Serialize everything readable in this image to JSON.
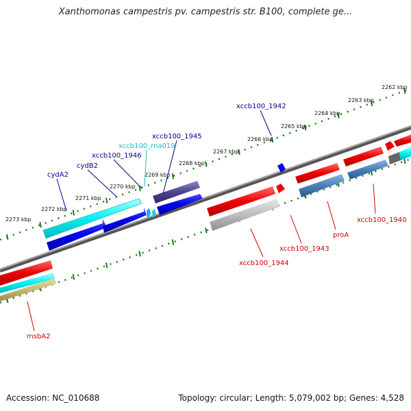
{
  "title": "Xanthomonas campestris pv. campestris str. B100, complete ge...",
  "footer": {
    "accession": "Accession: NC_010688",
    "summary": "Topology: circular; Length: 5,079,002 bp; Genes: 4,528"
  },
  "ticks": [
    "2262 kbp",
    "2263 kbp",
    "2264 kbp",
    "2265 kbp",
    "2266 kbp",
    "2267 kbp",
    "2268 kbp",
    "2269 kbp",
    "2270 kbp",
    "2271 kbp",
    "2272 kbp",
    "2273 kbp"
  ],
  "genes_top": [
    {
      "label": "xccb100_1942",
      "color": "#00008b"
    },
    {
      "label": "xccb100_1945",
      "color": "#00008b"
    },
    {
      "label": "xccb100_rna019",
      "color": "#22b8cc"
    },
    {
      "label": "xccb100_1946",
      "color": "#00008b"
    },
    {
      "label": "cydB2",
      "color": "#00008b"
    },
    {
      "label": "cydA2",
      "color": "#00008b"
    }
  ],
  "genes_bottom": [
    {
      "label": "xccb100_1940",
      "color": "#cc0000"
    },
    {
      "label": "proA",
      "color": "#cc0000"
    },
    {
      "label": "xccb100_1943",
      "color": "#cc0000"
    },
    {
      "label": "xccb100_1944",
      "color": "#cc0000"
    },
    {
      "label": "msbA2",
      "color": "#cc0000"
    }
  ]
}
